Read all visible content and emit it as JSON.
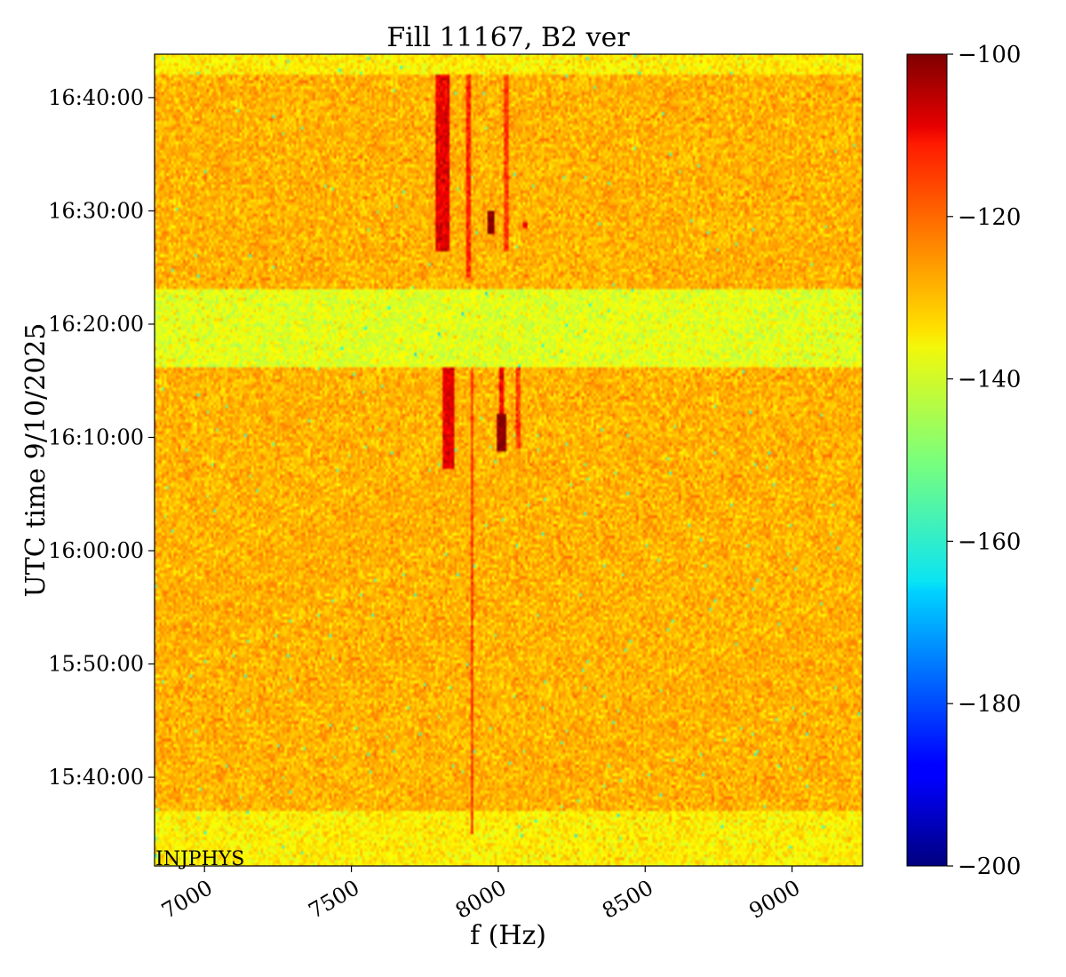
{
  "chart_data": {
    "type": "heatmap",
    "title": "Fill 11167, B2 ver",
    "xlabel": "f (Hz)",
    "ylabel": "UTC time 9/10/2025",
    "xlim": [
      6830,
      9240
    ],
    "xticks": [
      7000,
      7500,
      8000,
      8500,
      9000
    ],
    "ylim_labels": [
      "15:32:10",
      "16:43:50"
    ],
    "yticks": [
      "15:40:00",
      "15:50:00",
      "16:00:00",
      "16:10:00",
      "16:20:00",
      "16:30:00",
      "16:40:00"
    ],
    "colorbar": {
      "min": -200,
      "max": -100,
      "ticks": [
        -100,
        -120,
        -140,
        -160,
        -180,
        -200
      ],
      "colormap": "jet"
    },
    "background_level_dB": -130,
    "bands": [
      {
        "from": "16:16:10",
        "to": "16:23:00",
        "level_dB": -140
      },
      {
        "from": "15:32:10",
        "to": "15:37:00",
        "level_dB": -136
      },
      {
        "from": "16:42:00",
        "to": "16:43:50",
        "level_dB": -136
      }
    ],
    "features": [
      {
        "f": 7810,
        "from": "16:26:30",
        "to": "16:42:00",
        "width_hz": 35,
        "level_dB": -110
      },
      {
        "f": 7895,
        "from": "16:24:00",
        "to": "16:42:00",
        "width_hz": 8,
        "level_dB": -116
      },
      {
        "f": 8030,
        "from": "16:26:30",
        "to": "16:42:00",
        "width_hz": 8,
        "level_dB": -118
      },
      {
        "f": 7975,
        "from": "16:28:00",
        "to": "16:30:00",
        "width_hz": 20,
        "level_dB": -100
      },
      {
        "f": 8090,
        "from": "16:28:30",
        "to": "16:29:00",
        "width_hz": 10,
        "level_dB": -112
      },
      {
        "f": 7830,
        "from": "16:07:10",
        "to": "16:16:10",
        "width_hz": 35,
        "level_dB": -110
      },
      {
        "f": 7910,
        "from": "15:35:00",
        "to": "16:16:10",
        "width_hz": 6,
        "level_dB": -118
      },
      {
        "f": 8010,
        "from": "16:08:50",
        "to": "16:12:00",
        "width_hz": 18,
        "level_dB": -100
      },
      {
        "f": 8010,
        "from": "16:12:00",
        "to": "16:16:10",
        "width_hz": 6,
        "level_dB": -112
      },
      {
        "f": 8070,
        "from": "16:09:00",
        "to": "16:16:10",
        "width_hz": 8,
        "level_dB": -118
      }
    ],
    "annotation": "INJPHYS"
  }
}
